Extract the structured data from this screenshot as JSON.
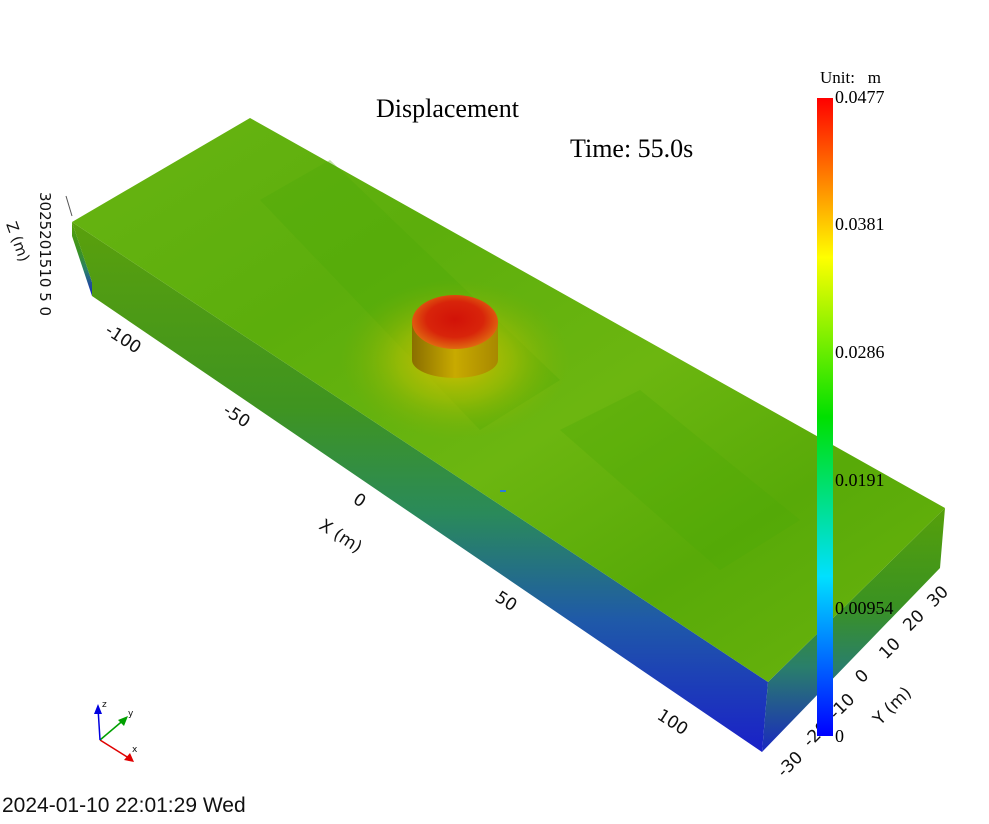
{
  "title": "Displacement",
  "time_label": "Time: 55.0s",
  "timestamp": "2024-01-10 22:01:29 Wed",
  "colorbar": {
    "unit_label": "Unit:   m",
    "min": 0,
    "max": 0.0477,
    "ticks": [
      "0.0477",
      "0.0381",
      "0.0286",
      "0.0191",
      "0.00954",
      "0"
    ],
    "colors": [
      "#0000ff",
      "#00e0ff",
      "#00e000",
      "#ffff00",
      "#ff0000"
    ]
  },
  "axes": {
    "x": {
      "label": "X (m)",
      "ticks": [
        "-100",
        "-50",
        "0",
        "50",
        "100"
      ]
    },
    "y": {
      "label": "Y (m)",
      "ticks": [
        "-30",
        "-20",
        "-10",
        "0",
        "10",
        "20",
        "30"
      ]
    },
    "z": {
      "label": "Z (m)",
      "tick_text": "3025201510 5 0"
    }
  },
  "orientation_triad": {
    "x": "x",
    "y": "y",
    "z": "z"
  },
  "colors": {
    "top_surface": "#5fb010",
    "pillar_top": "#d71e0a",
    "pillar_side": "#c0a000"
  }
}
